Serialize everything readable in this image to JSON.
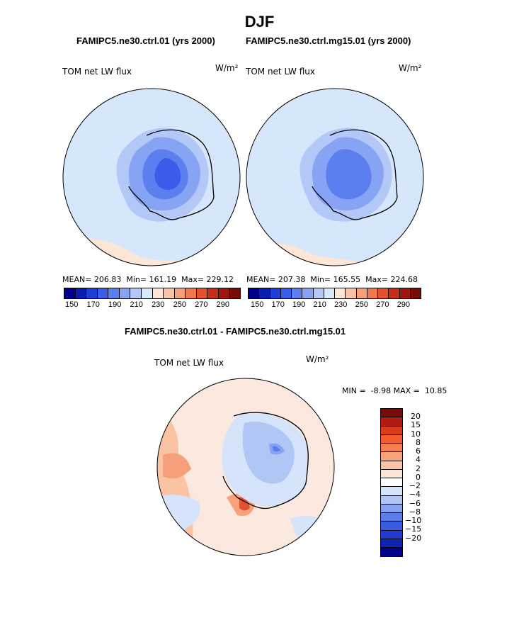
{
  "page": {
    "title": "DJF",
    "left_title": "FAMIPC5.ne30.ctrl.01 (yrs 2000)",
    "right_title": "FAMIPC5.ne30.ctrl.mg15.01 (yrs 2000)",
    "diff_title": "FAMIPC5.ne30.ctrl.01 - FAMIPC5.ne30.ctrl.mg15.01"
  },
  "panels": {
    "left": {
      "var_label": "TOM net LW flux",
      "units_label": "W/m²",
      "stats": "MEAN= 206.83  Min= 161.19  Max= 229.12"
    },
    "right": {
      "var_label": "TOM net LW flux",
      "units_label": "W/m²",
      "stats": "MEAN= 207.38  Min= 165.55  Max= 224.68"
    },
    "diff": {
      "var_label": "TOM net LW flux",
      "units_label": "W/m²",
      "stats": "MIN =  -8.98 MAX =  10.85"
    }
  },
  "colorbar_abs": {
    "colors": [
      "#00008c",
      "#0a1fb0",
      "#1e3fd8",
      "#3a5ce8",
      "#5b7fef",
      "#86a4f3",
      "#b3c8f7",
      "#dbe8fb",
      "#fde6d6",
      "#f9c4a4",
      "#f5a07a",
      "#ef7850",
      "#e4512f",
      "#c52f1a",
      "#9e1810",
      "#7a0a08"
    ],
    "tick_labels": [
      "150",
      "170",
      "190",
      "210",
      "230",
      "250",
      "270",
      "290"
    ]
  },
  "colorbar_diff": {
    "colors": [
      "#7a0a08",
      "#b31b12",
      "#de3b1c",
      "#f25c2e",
      "#f57f50",
      "#f7a27b",
      "#f9c3a4",
      "#fde4d2",
      "#ffffff",
      "#d6e4fb",
      "#b0c7f6",
      "#86a3f1",
      "#5b7de9",
      "#3a5de0",
      "#1f3ecf",
      "#0d23b2",
      "#00008c"
    ],
    "labels": [
      "20",
      "15",
      "10",
      "8",
      "6",
      "4",
      "2",
      "0",
      "−2",
      "−4",
      "−6",
      "−8",
      "−10",
      "−15",
      "−20"
    ]
  }
}
